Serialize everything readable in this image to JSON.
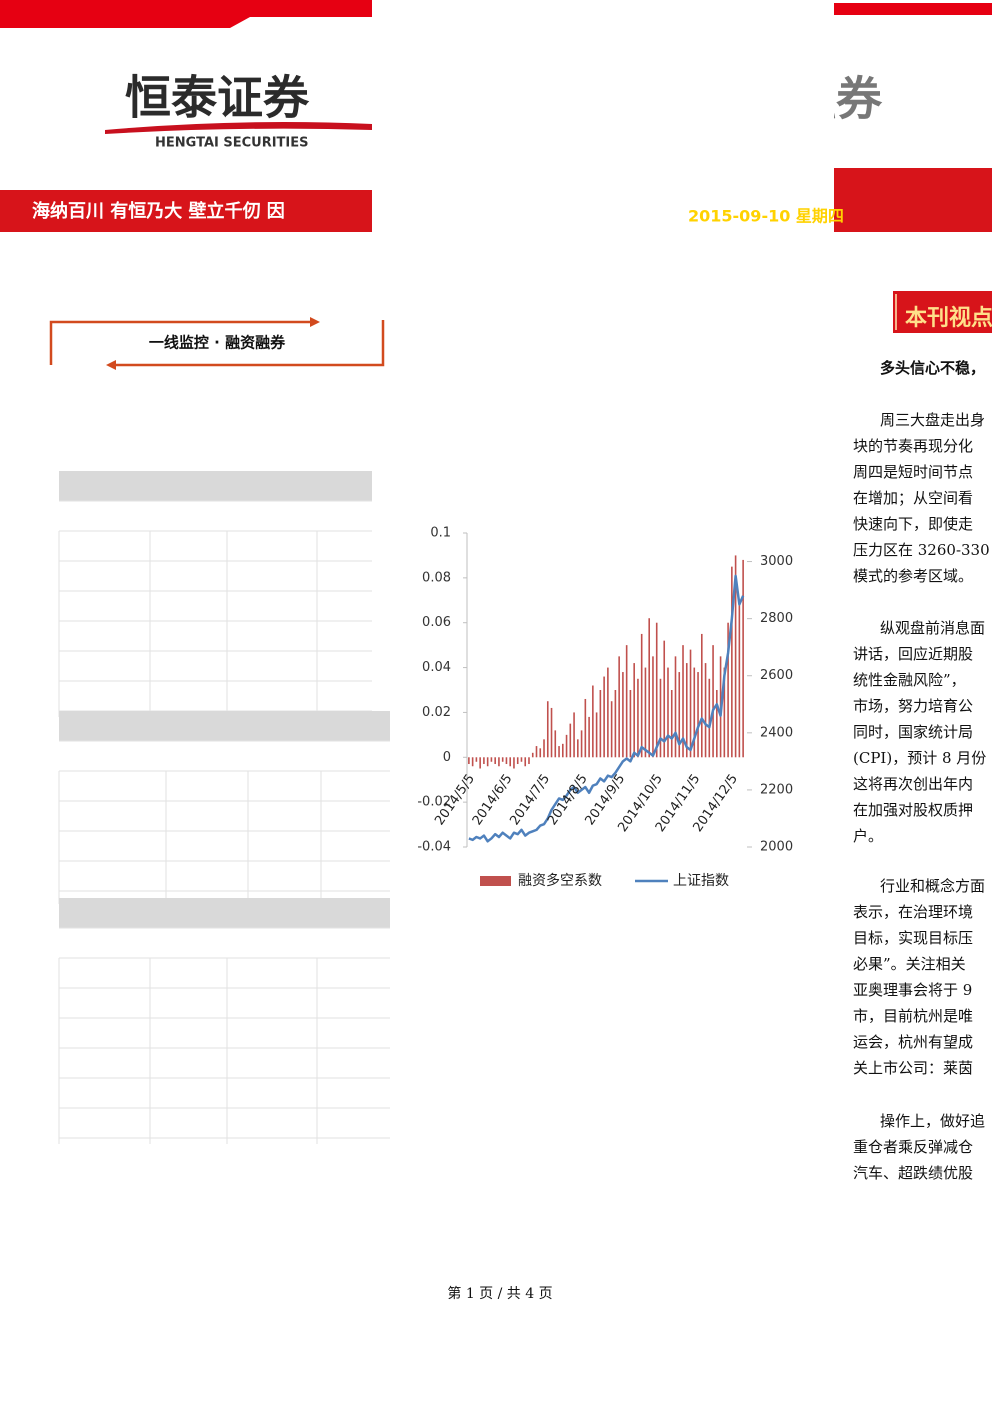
{
  "header": {
    "logo": "恒泰证券",
    "logo_en": "HENGTAI SECURITIES",
    "slogan": "海纳百川 有恒乃大 壁立千仞 因",
    "right_title": "融券",
    "date": "2015-09-10 星期四"
  },
  "sidebar": {
    "section_title": "一线监控 · 融资融券"
  },
  "view": {
    "heading": "本刊视点",
    "title": "多头信心不稳，",
    "paragraphs": [
      [
        "周三大盘走出身",
        "块的节奏再现分化",
        "周四是短时间节点",
        "在增加；从空间看",
        "快速向下，即使走",
        "压力区在 3260-330",
        "模式的参考区域。"
      ],
      [
        "纵观盘前消息面",
        "讲话，回应近期股",
        "统性金融风险”，",
        "市场，努力培育公",
        "同时，国家统计局",
        "(CPI)，预计 8 月份",
        "这将再次创出年内",
        "在加强对股权质押",
        "户。"
      ],
      [
        "行业和概念方面",
        "表示，在治理环境",
        "目标，实现目标压",
        "必果”。关注相关",
        "亚奥理事会将于 9",
        "市，目前杭州是唯",
        "运会，杭州有望成",
        "关上市公司：莱茵"
      ],
      [
        "操作上，做好追",
        "重仓者乘反弹减仓",
        "汽车、超跌绩优股"
      ]
    ]
  },
  "footer": "第 1 页 / 共 4 页",
  "chart_data": {
    "type": "bar-line",
    "categories": [
      "2014/5/5",
      null,
      null,
      null,
      null,
      null,
      null,
      null,
      null,
      null,
      "2014/6/5",
      null,
      null,
      null,
      null,
      null,
      null,
      null,
      null,
      null,
      "2014/7/5",
      null,
      null,
      null,
      null,
      null,
      null,
      null,
      null,
      null,
      "2014/8/5",
      null,
      null,
      null,
      null,
      null,
      null,
      null,
      null,
      null,
      "2014/9/5",
      null,
      null,
      null,
      null,
      null,
      null,
      null,
      null,
      null,
      "2014/10/5",
      null,
      null,
      null,
      null,
      null,
      null,
      null,
      null,
      null,
      "2014/11/5",
      null,
      null,
      null,
      null,
      null,
      null,
      null,
      null,
      null,
      "2014/12/5",
      null,
      null,
      null
    ],
    "series": [
      {
        "name": "融资多空系数",
        "color": "#c0504d",
        "type": "bar",
        "values": [
          -0.003,
          -0.004,
          -0.002,
          -0.005,
          -0.003,
          -0.004,
          -0.002,
          -0.003,
          -0.004,
          -0.002,
          -0.003,
          -0.004,
          -0.005,
          -0.003,
          -0.002,
          -0.004,
          -0.003,
          0.002,
          0.005,
          0.004,
          0.008,
          0.025,
          0.022,
          0.012,
          0.005,
          0.006,
          0.01,
          0.015,
          0.02,
          0.008,
          0.012,
          0.026,
          0.018,
          0.032,
          0.02,
          0.03,
          0.036,
          0.04,
          0.025,
          0.03,
          0.045,
          0.038,
          0.05,
          0.03,
          0.042,
          0.035,
          0.055,
          0.04,
          0.062,
          0.045,
          0.06,
          0.035,
          0.052,
          0.04,
          0.03,
          0.045,
          0.038,
          0.05,
          0.042,
          0.048,
          0.04,
          0.038,
          0.055,
          0.042,
          0.035,
          0.05,
          0.03,
          0.045,
          0.04,
          0.06,
          0.085,
          0.09,
          0.07,
          0.088
        ]
      },
      {
        "name": "上证指数",
        "color": "#4f81bd",
        "type": "line",
        "axis": "y2",
        "values": [
          2030,
          2025,
          2035,
          2030,
          2040,
          2020,
          2030,
          2045,
          2035,
          2050,
          2040,
          2030,
          2050,
          2045,
          2060,
          2040,
          2050,
          2055,
          2060,
          2075,
          2080,
          2100,
          2130,
          2150,
          2170,
          2165,
          2180,
          2200,
          2210,
          2190,
          2200,
          2210,
          2190,
          2215,
          2220,
          2240,
          2230,
          2250,
          2245,
          2260,
          2280,
          2300,
          2310,
          2300,
          2330,
          2320,
          2350,
          2340,
          2330,
          2320,
          2350,
          2380,
          2370,
          2390,
          2380,
          2400,
          2360,
          2380,
          2350,
          2340,
          2380,
          2420,
          2450,
          2430,
          2420,
          2480,
          2500,
          2460,
          2600,
          2680,
          2800,
          2950,
          2850,
          2880
        ]
      }
    ],
    "ylim": [
      -0.04,
      0.1
    ],
    "yticks": [
      -0.04,
      -0.02,
      0,
      0.02,
      0.04,
      0.06,
      0.08,
      0.1
    ],
    "y2lim": [
      2000,
      3100
    ],
    "y2ticks": [
      2000,
      2200,
      2400,
      2600,
      2800,
      3000
    ],
    "legend": "bottom"
  }
}
